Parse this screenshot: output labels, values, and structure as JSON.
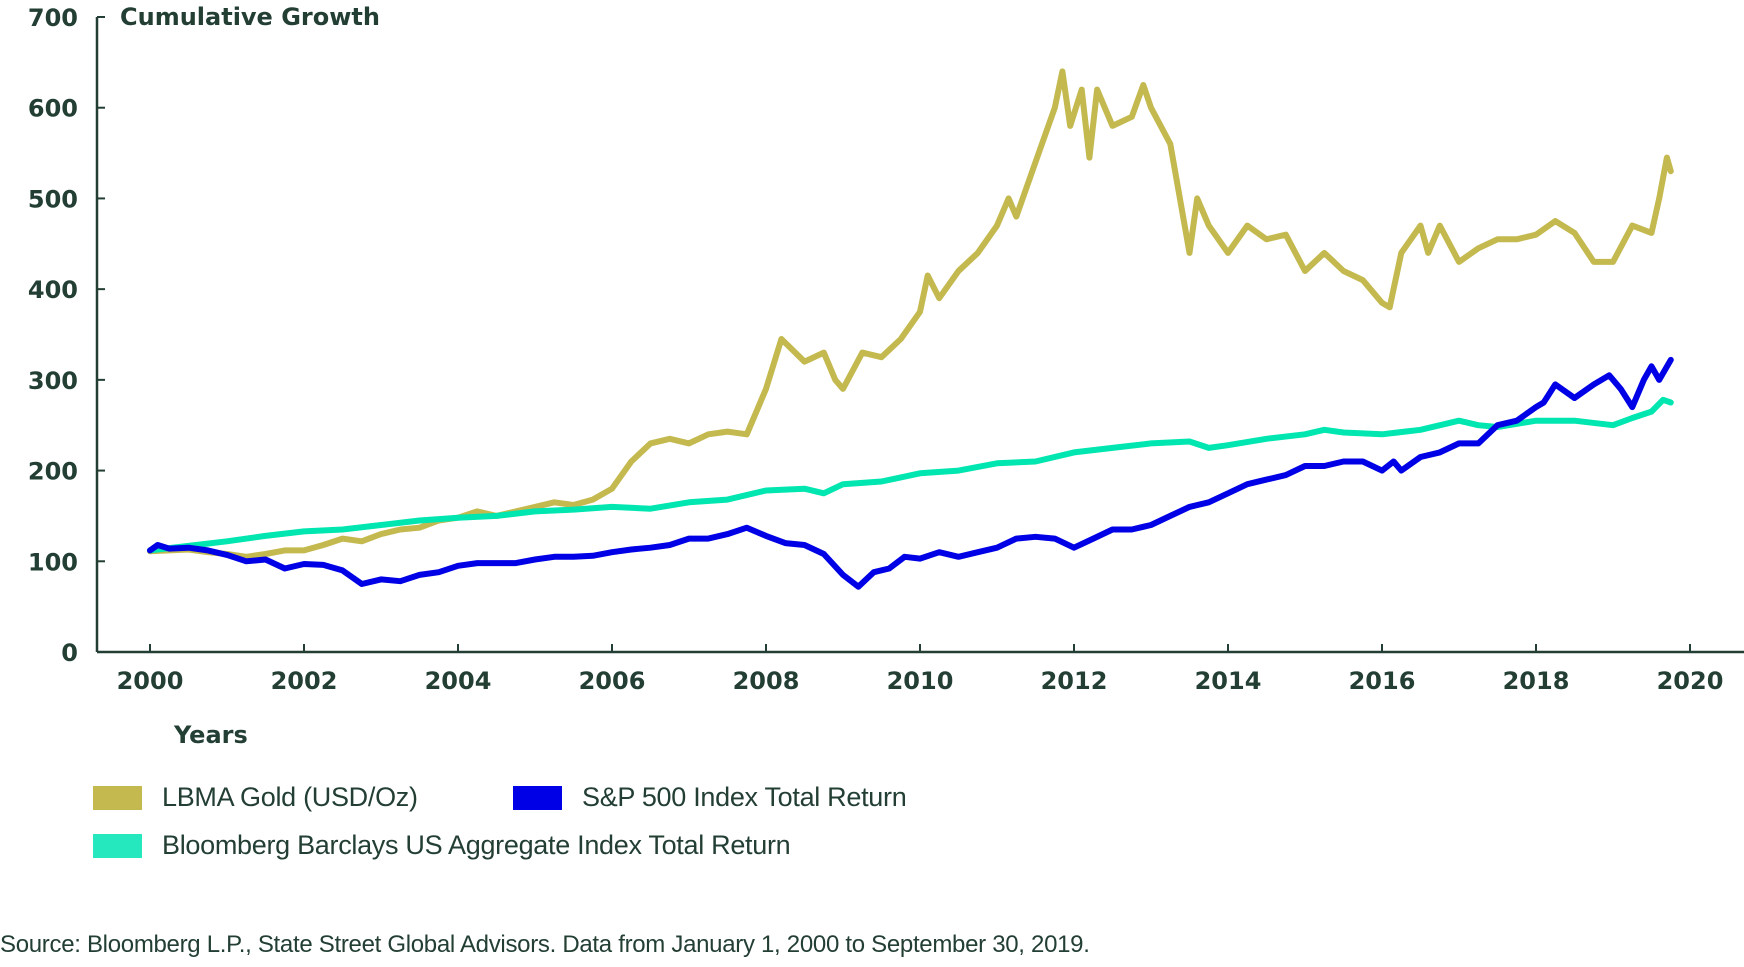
{
  "chart_data": {
    "type": "line",
    "title": "Cumulative Growth",
    "xlabel": "Years",
    "ylabel": "",
    "xlim": [
      2000,
      2020
    ],
    "ylim": [
      0,
      700
    ],
    "xticks": [
      2000,
      2002,
      2004,
      2006,
      2008,
      2010,
      2012,
      2014,
      2016,
      2018,
      2020
    ],
    "xtick_labels": [
      "2000",
      "2002",
      "2004",
      "2006",
      "2008",
      "2010",
      "2012",
      "2014",
      "2016",
      "2018",
      "2020"
    ],
    "yticks": [
      0,
      100,
      200,
      300,
      400,
      500,
      600,
      700
    ],
    "ytick_labels": [
      "0",
      "100",
      "200",
      "300",
      "400",
      "500",
      "600",
      "700"
    ],
    "grid": false,
    "legend_position": "bottom-left",
    "series": [
      {
        "name": "LBMA Gold (USD/Oz)",
        "color": "#C4B94F",
        "x": [
          2000.0,
          2000.25,
          2000.5,
          2000.75,
          2001.0,
          2001.25,
          2001.5,
          2001.75,
          2002.0,
          2002.25,
          2002.5,
          2002.75,
          2003.0,
          2003.25,
          2003.5,
          2003.75,
          2004.0,
          2004.25,
          2004.5,
          2004.75,
          2005.0,
          2005.25,
          2005.5,
          2005.75,
          2006.0,
          2006.25,
          2006.5,
          2006.75,
          2007.0,
          2007.25,
          2007.5,
          2007.75,
          2008.0,
          2008.2,
          2008.5,
          2008.75,
          2008.9,
          2009.0,
          2009.25,
          2009.5,
          2009.75,
          2010.0,
          2010.1,
          2010.25,
          2010.5,
          2010.75,
          2011.0,
          2011.15,
          2011.25,
          2011.5,
          2011.75,
          2011.85,
          2011.95,
          2012.1,
          2012.2,
          2012.3,
          2012.5,
          2012.75,
          2012.9,
          2013.0,
          2013.25,
          2013.5,
          2013.6,
          2013.75,
          2014.0,
          2014.25,
          2014.5,
          2014.75,
          2015.0,
          2015.25,
          2015.5,
          2015.75,
          2016.0,
          2016.1,
          2016.25,
          2016.5,
          2016.6,
          2016.75,
          2017.0,
          2017.25,
          2017.5,
          2017.75,
          2018.0,
          2018.25,
          2018.5,
          2018.75,
          2019.0,
          2019.25,
          2019.5,
          2019.6,
          2019.7,
          2019.75
        ],
        "values": [
          111,
          112,
          113,
          110,
          108,
          105,
          108,
          112,
          112,
          118,
          125,
          122,
          130,
          135,
          137,
          145,
          148,
          155,
          150,
          155,
          160,
          165,
          162,
          168,
          180,
          210,
          230,
          235,
          230,
          240,
          243,
          240,
          290,
          345,
          320,
          330,
          300,
          290,
          330,
          325,
          345,
          375,
          415,
          390,
          420,
          440,
          470,
          500,
          480,
          540,
          600,
          640,
          580,
          620,
          545,
          620,
          580,
          590,
          625,
          600,
          560,
          440,
          500,
          470,
          440,
          470,
          455,
          460,
          420,
          440,
          420,
          410,
          385,
          380,
          440,
          470,
          440,
          470,
          430,
          445,
          455,
          455,
          460,
          475,
          462,
          430,
          430,
          470,
          462,
          500,
          545,
          530
        ]
      },
      {
        "name": "S&P 500 Index Total Return",
        "color": "#0000E6",
        "x": [
          2000.0,
          2000.1,
          2000.25,
          2000.5,
          2000.75,
          2001.0,
          2001.25,
          2001.5,
          2001.75,
          2002.0,
          2002.25,
          2002.5,
          2002.75,
          2003.0,
          2003.25,
          2003.5,
          2003.75,
          2004.0,
          2004.25,
          2004.5,
          2004.75,
          2005.0,
          2005.25,
          2005.5,
          2005.75,
          2006.0,
          2006.25,
          2006.5,
          2006.75,
          2007.0,
          2007.25,
          2007.5,
          2007.75,
          2008.0,
          2008.25,
          2008.5,
          2008.75,
          2009.0,
          2009.2,
          2009.4,
          2009.6,
          2009.8,
          2010.0,
          2010.25,
          2010.5,
          2010.75,
          2011.0,
          2011.25,
          2011.5,
          2011.75,
          2012.0,
          2012.25,
          2012.5,
          2012.75,
          2013.0,
          2013.25,
          2013.5,
          2013.75,
          2014.0,
          2014.25,
          2014.5,
          2014.75,
          2015.0,
          2015.25,
          2015.5,
          2015.75,
          2016.0,
          2016.15,
          2016.25,
          2016.5,
          2016.75,
          2017.0,
          2017.25,
          2017.5,
          2017.75,
          2018.0,
          2018.1,
          2018.25,
          2018.5,
          2018.75,
          2018.95,
          2019.1,
          2019.25,
          2019.4,
          2019.5,
          2019.6,
          2019.75
        ],
        "values": [
          112,
          118,
          114,
          115,
          112,
          107,
          100,
          102,
          92,
          97,
          96,
          90,
          75,
          80,
          78,
          85,
          88,
          95,
          98,
          98,
          98,
          102,
          105,
          105,
          106,
          110,
          113,
          115,
          118,
          125,
          125,
          130,
          137,
          128,
          120,
          118,
          108,
          85,
          72,
          88,
          92,
          105,
          103,
          110,
          105,
          110,
          115,
          125,
          127,
          125,
          115,
          125,
          135,
          135,
          140,
          150,
          160,
          165,
          175,
          185,
          190,
          195,
          205,
          205,
          210,
          210,
          200,
          210,
          200,
          215,
          220,
          230,
          230,
          250,
          255,
          270,
          275,
          295,
          280,
          295,
          305,
          290,
          270,
          300,
          315,
          300,
          322
        ]
      },
      {
        "name": "Bloomberg Barclays US Aggregate Index Total Return",
        "color": "#00E6B0",
        "x": [
          2000.0,
          2000.5,
          2001.0,
          2001.5,
          2002.0,
          2002.5,
          2003.0,
          2003.5,
          2004.0,
          2004.5,
          2005.0,
          2005.5,
          2006.0,
          2006.5,
          2007.0,
          2007.5,
          2008.0,
          2008.5,
          2008.75,
          2009.0,
          2009.5,
          2010.0,
          2010.5,
          2011.0,
          2011.5,
          2012.0,
          2012.5,
          2013.0,
          2013.5,
          2013.75,
          2014.0,
          2014.5,
          2015.0,
          2015.25,
          2015.5,
          2016.0,
          2016.5,
          2017.0,
          2017.25,
          2017.5,
          2018.0,
          2018.5,
          2019.0,
          2019.25,
          2019.5,
          2019.65,
          2019.75
        ],
        "values": [
          112,
          117,
          122,
          128,
          133,
          135,
          140,
          145,
          148,
          150,
          155,
          157,
          160,
          158,
          165,
          168,
          178,
          180,
          175,
          185,
          188,
          197,
          200,
          208,
          210,
          220,
          225,
          230,
          232,
          225,
          228,
          235,
          240,
          245,
          242,
          240,
          245,
          255,
          250,
          248,
          255,
          255,
          250,
          258,
          265,
          278,
          275
        ]
      }
    ]
  },
  "legend": {
    "items": [
      {
        "label": "LBMA Gold (USD/Oz)",
        "color": "#C4B94F"
      },
      {
        "label": "S&P 500 Index Total Return",
        "color": "#0000E6"
      },
      {
        "label": "Bloomberg Barclays US Aggregate Index Total Return",
        "color": "#26E8BE"
      }
    ]
  },
  "source": "Source: Bloomberg L.P., State Street Global Advisors. Data from January 1, 2000 to September 30, 2019."
}
